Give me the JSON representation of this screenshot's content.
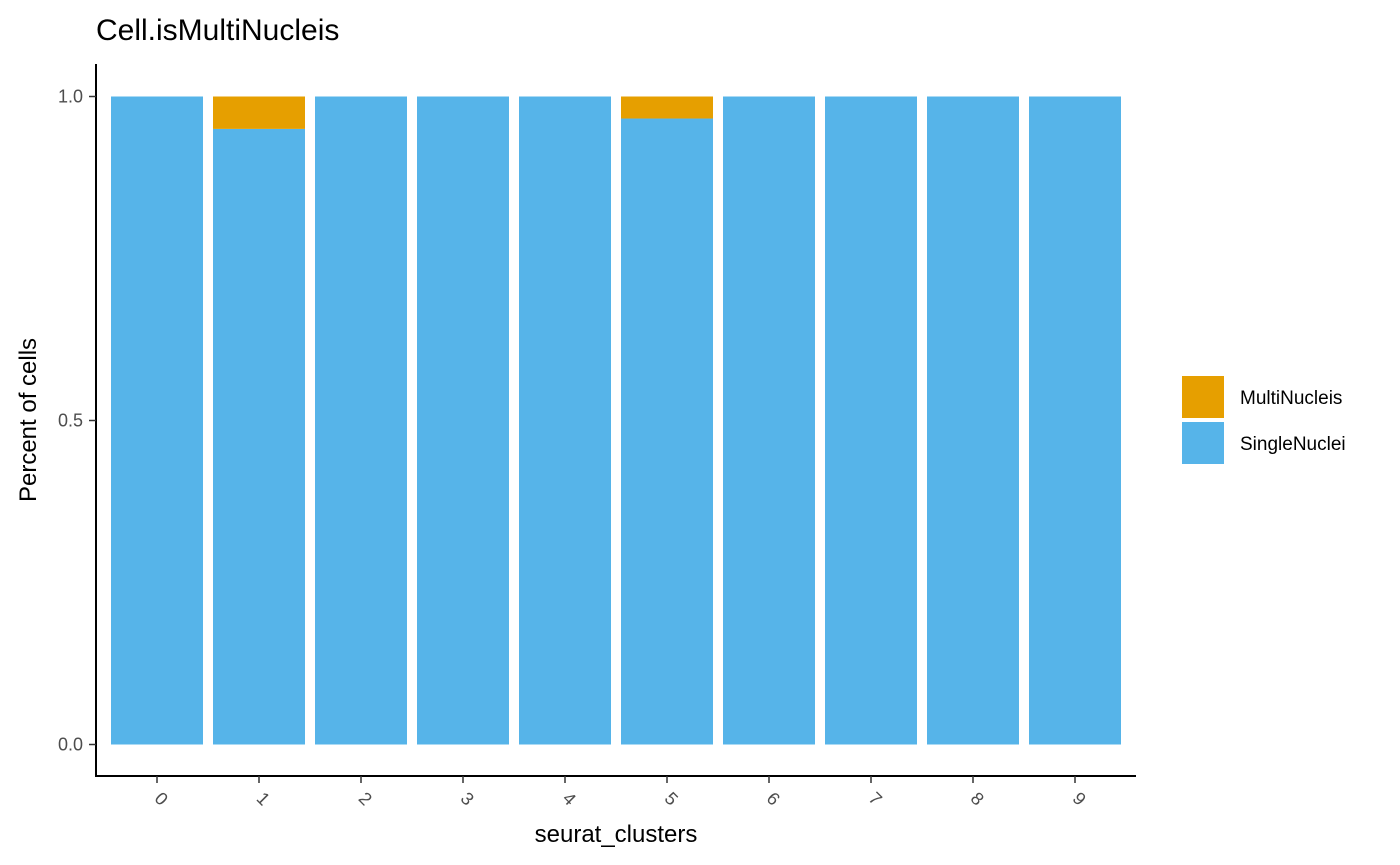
{
  "chart_data": {
    "type": "bar",
    "stacked": true,
    "title": "Cell.isMultiNucleis",
    "xlabel": "seurat_clusters",
    "ylabel": "Percent of cells",
    "categories": [
      "0",
      "1",
      "2",
      "3",
      "4",
      "5",
      "6",
      "7",
      "8",
      "9"
    ],
    "series": [
      {
        "name": "SingleNuclei",
        "color": "#56B4E9",
        "values": [
          1.0,
          0.95,
          1.0,
          1.0,
          1.0,
          0.966,
          1.0,
          1.0,
          1.0,
          1.0
        ]
      },
      {
        "name": "MultiNucleis",
        "color": "#E69F00",
        "values": [
          0.0,
          0.05,
          0.0,
          0.0,
          0.0,
          0.034,
          0.0,
          0.0,
          0.0,
          0.0
        ]
      }
    ],
    "legend_order": [
      "MultiNucleis",
      "SingleNuclei"
    ],
    "yticks": [
      0.0,
      0.5,
      1.0
    ],
    "ytick_labels": [
      "0.0",
      "0.5",
      "1.0"
    ],
    "ylim": [
      0,
      1
    ],
    "grid": false,
    "legend_position": "right"
  }
}
